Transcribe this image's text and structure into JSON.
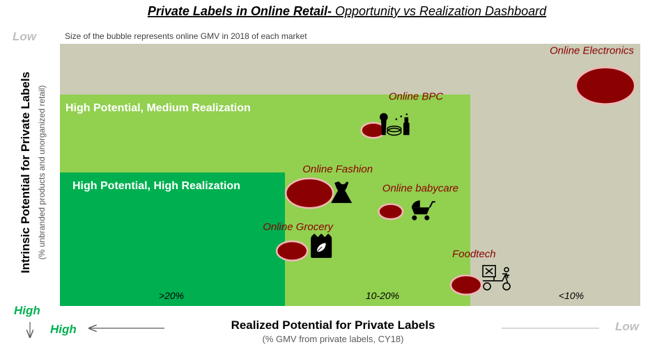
{
  "title": {
    "main": "Private Labels in Online Retail-",
    "sub": " Opportunity vs Realization Dashboard"
  },
  "note": "Size of the bubble represents online GMV in 2018 of each market",
  "y_axis": {
    "label": "Intrinsic Potential for Private Labels",
    "sublabel": "(% unbranded products and unorganized retail)",
    "top": "Low",
    "bottom": "High"
  },
  "x_axis": {
    "label": "Realized Potential for Private Labels",
    "sublabel": "(% GMV from private labels, CY18)",
    "left": "High",
    "right": "Low"
  },
  "zones": [
    {
      "label": "High Potential, Medium Realization",
      "color": "#92d050"
    },
    {
      "label": "High Potential, High Realization",
      "color": "#00b050"
    }
  ],
  "plot_bg": "#cbcbb6",
  "bands": [
    ">20%",
    "10-20%",
    "<10%"
  ],
  "colors": {
    "bubble": "#8b0000",
    "bubble_edge": "#f2b8b8",
    "market_label": "#8b0000",
    "high": "#00b050",
    "low": "#bfbfbf"
  },
  "chart_data": {
    "type": "bubble",
    "note": "",
    "points": [
      {
        "name": "Online Electronics",
        "icon": "",
        "x": 94,
        "y": 16,
        "size": 10
      },
      {
        "name": "Online BPC",
        "icon": "makeup-icon",
        "x": 54,
        "y": 33,
        "size": 1
      },
      {
        "name": "Online Fashion",
        "icon": "dress-icon",
        "x": 43,
        "y": 57,
        "size": 6
      },
      {
        "name": "Online babycare",
        "icon": "stroller-icon",
        "x": 57,
        "y": 64,
        "size": 1
      },
      {
        "name": "Online Grocery",
        "icon": "grocery-bag-icon",
        "x": 40,
        "y": 79,
        "size": 2
      },
      {
        "name": "Foodtech",
        "icon": "delivery-scooter-icon",
        "x": 70,
        "y": 92,
        "size": 2
      }
    ]
  }
}
